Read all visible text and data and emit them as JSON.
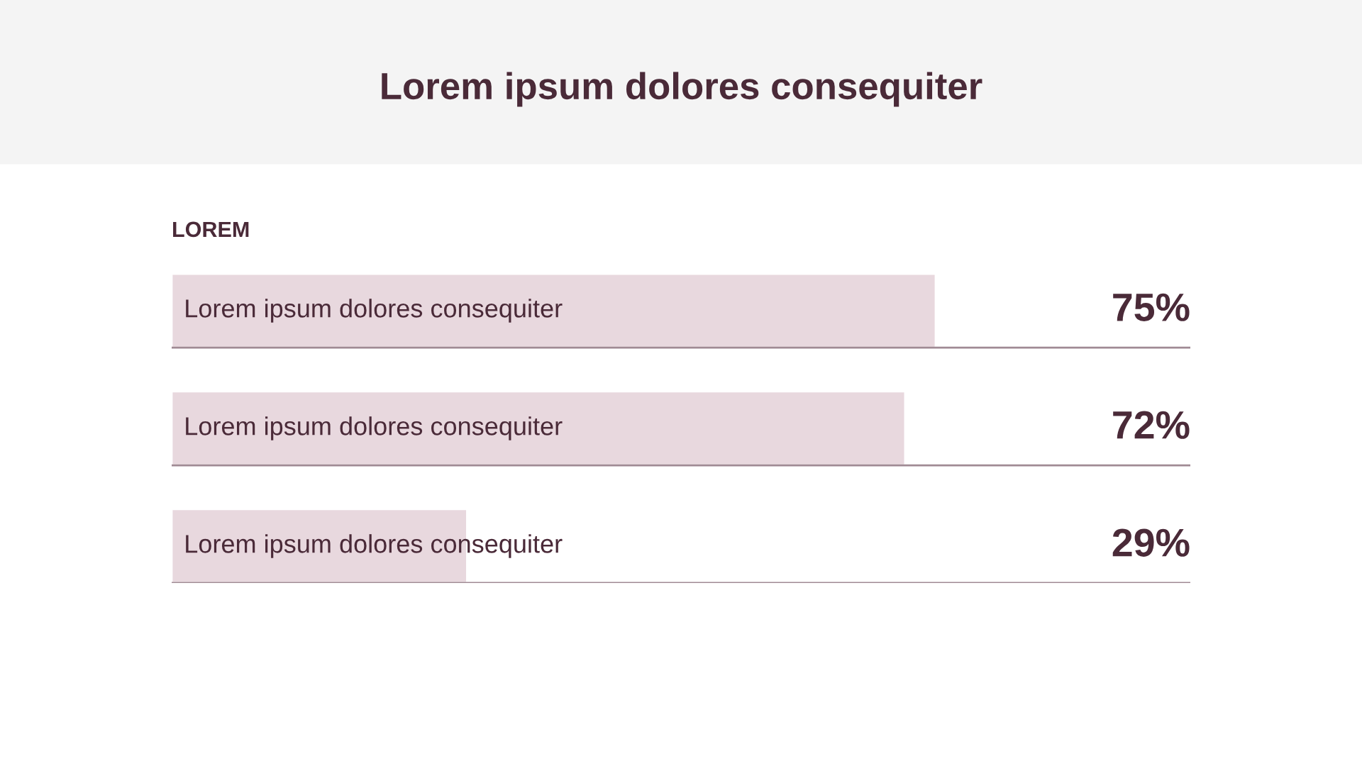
{
  "chart_data": {
    "type": "bar",
    "orientation": "horizontal",
    "title": "Lorem ipsum dolores consequiter",
    "subtitle": "LOREM",
    "categories": [
      "Lorem ipsum dolores consequiter",
      "Lorem ipsum dolores consequiter",
      "Lorem ipsum dolores consequiter"
    ],
    "values": [
      75,
      72,
      29
    ],
    "value_labels": [
      "75%",
      "72%",
      "29%"
    ],
    "color": "#e8d8de",
    "xlim": [
      0,
      100
    ],
    "legend": false
  }
}
